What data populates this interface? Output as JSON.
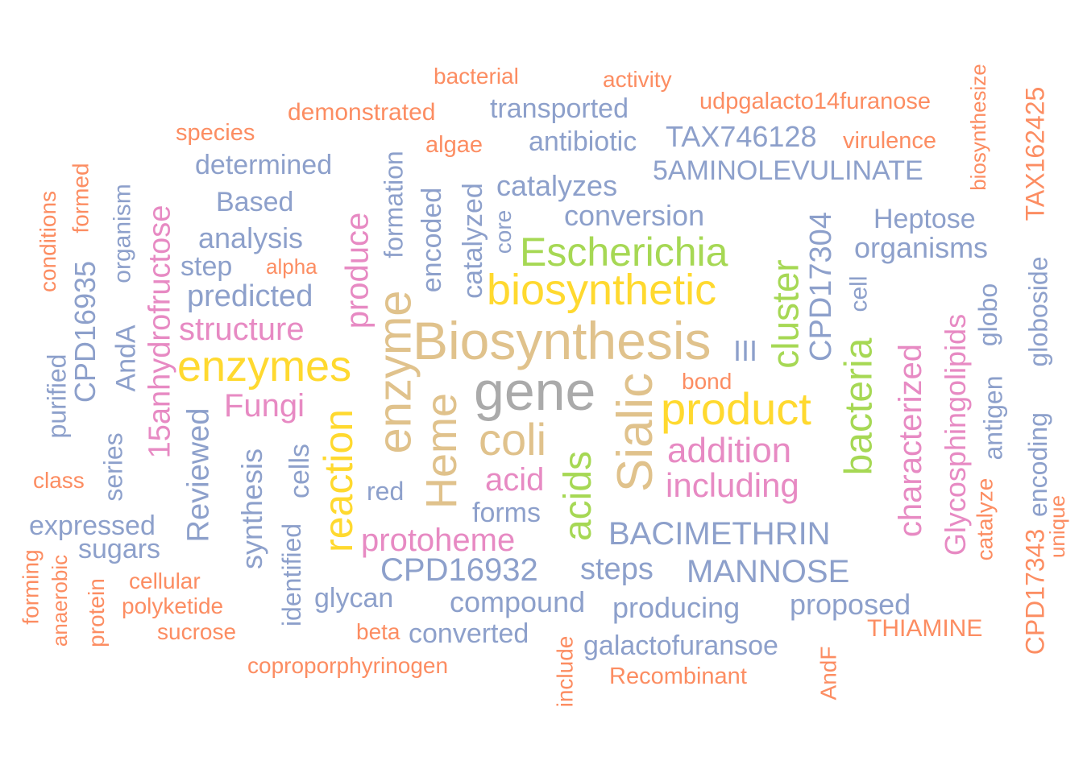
{
  "palette": {
    "gray": "#aaaaaa",
    "tan": "#e0c28c",
    "yellow": "#ffd92f",
    "green": "#a6d854",
    "pink": "#e78ac3",
    "blue": "#8da0cb",
    "orange": "#fc8d62"
  },
  "words": [
    {
      "text": "gene",
      "color": "gray"
    },
    {
      "text": "Biosynthesis",
      "color": "tan"
    },
    {
      "text": "enzyme",
      "color": "tan"
    },
    {
      "text": "Heme",
      "color": "tan"
    },
    {
      "text": "Sialic",
      "color": "tan"
    },
    {
      "text": "coli",
      "color": "tan"
    },
    {
      "text": "biosynthetic",
      "color": "yellow"
    },
    {
      "text": "enzymes",
      "color": "yellow"
    },
    {
      "text": "product",
      "color": "yellow"
    },
    {
      "text": "reaction",
      "color": "yellow"
    },
    {
      "text": "Escherichia",
      "color": "green"
    },
    {
      "text": "cluster",
      "color": "green"
    },
    {
      "text": "bacteria",
      "color": "green"
    },
    {
      "text": "acids",
      "color": "green"
    },
    {
      "text": "produce",
      "color": "pink"
    },
    {
      "text": "structure",
      "color": "pink"
    },
    {
      "text": "Fungi",
      "color": "pink"
    },
    {
      "text": "15anhydrofructose",
      "color": "pink"
    },
    {
      "text": "addition",
      "color": "pink"
    },
    {
      "text": "including",
      "color": "pink"
    },
    {
      "text": "acid",
      "color": "pink"
    },
    {
      "text": "protoheme",
      "color": "pink"
    },
    {
      "text": "characterized",
      "color": "pink"
    },
    {
      "text": "Glycosphingolipids",
      "color": "pink"
    },
    {
      "text": "transported",
      "color": "blue"
    },
    {
      "text": "antibiotic",
      "color": "blue"
    },
    {
      "text": "TAX746128",
      "color": "blue"
    },
    {
      "text": "5AMINOLEVULINATE",
      "color": "blue"
    },
    {
      "text": "catalyzes",
      "color": "blue"
    },
    {
      "text": "conversion",
      "color": "blue"
    },
    {
      "text": "Heptose",
      "color": "blue"
    },
    {
      "text": "organisms",
      "color": "blue"
    },
    {
      "text": "determined",
      "color": "blue"
    },
    {
      "text": "Based",
      "color": "blue"
    },
    {
      "text": "analysis",
      "color": "blue"
    },
    {
      "text": "step",
      "color": "blue"
    },
    {
      "text": "predicted",
      "color": "blue"
    },
    {
      "text": "formation",
      "color": "blue"
    },
    {
      "text": "encoded",
      "color": "blue"
    },
    {
      "text": "catalyzed",
      "color": "blue"
    },
    {
      "text": "core",
      "color": "blue"
    },
    {
      "text": "CPD17304",
      "color": "blue"
    },
    {
      "text": "cell",
      "color": "blue"
    },
    {
      "text": "III",
      "color": "blue"
    },
    {
      "text": "organism",
      "color": "blue"
    },
    {
      "text": "CPD16935",
      "color": "blue"
    },
    {
      "text": "AndA",
      "color": "blue"
    },
    {
      "text": "purified",
      "color": "blue"
    },
    {
      "text": "series",
      "color": "blue"
    },
    {
      "text": "Reviewed",
      "color": "blue"
    },
    {
      "text": "synthesis",
      "color": "blue"
    },
    {
      "text": "cells",
      "color": "blue"
    },
    {
      "text": "identified",
      "color": "blue"
    },
    {
      "text": "red",
      "color": "blue"
    },
    {
      "text": "forms",
      "color": "blue"
    },
    {
      "text": "expressed",
      "color": "blue"
    },
    {
      "text": "sugars",
      "color": "blue"
    },
    {
      "text": "BACIMETHRIN",
      "color": "blue"
    },
    {
      "text": "MANNOSE",
      "color": "blue"
    },
    {
      "text": "steps",
      "color": "blue"
    },
    {
      "text": "CPD16932",
      "color": "blue"
    },
    {
      "text": "glycan",
      "color": "blue"
    },
    {
      "text": "compound",
      "color": "blue"
    },
    {
      "text": "producing",
      "color": "blue"
    },
    {
      "text": "proposed",
      "color": "blue"
    },
    {
      "text": "converted",
      "color": "blue"
    },
    {
      "text": "galactofuransoe",
      "color": "blue"
    },
    {
      "text": "globo",
      "color": "blue"
    },
    {
      "text": "antigen",
      "color": "blue"
    },
    {
      "text": "encoding",
      "color": "blue"
    },
    {
      "text": "globoside",
      "color": "blue"
    },
    {
      "text": "bacterial",
      "color": "orange"
    },
    {
      "text": "activity",
      "color": "orange"
    },
    {
      "text": "demonstrated",
      "color": "orange"
    },
    {
      "text": "udpgalacto14furanose",
      "color": "orange"
    },
    {
      "text": "species",
      "color": "orange"
    },
    {
      "text": "algae",
      "color": "orange"
    },
    {
      "text": "virulence",
      "color": "orange"
    },
    {
      "text": "biosynthesize",
      "color": "orange"
    },
    {
      "text": "TAX162425",
      "color": "orange"
    },
    {
      "text": "conditions",
      "color": "orange"
    },
    {
      "text": "formed",
      "color": "orange"
    },
    {
      "text": "alpha",
      "color": "orange"
    },
    {
      "text": "bond",
      "color": "orange"
    },
    {
      "text": "class",
      "color": "orange"
    },
    {
      "text": "forming",
      "color": "orange"
    },
    {
      "text": "anaerobic",
      "color": "orange"
    },
    {
      "text": "protein",
      "color": "orange"
    },
    {
      "text": "cellular",
      "color": "orange"
    },
    {
      "text": "polyketide",
      "color": "orange"
    },
    {
      "text": "sucrose",
      "color": "orange"
    },
    {
      "text": "beta",
      "color": "orange"
    },
    {
      "text": "coproporphyrinogen",
      "color": "orange"
    },
    {
      "text": "include",
      "color": "orange"
    },
    {
      "text": "Recombinant",
      "color": "orange"
    },
    {
      "text": "AndF",
      "color": "orange"
    },
    {
      "text": "THIAMINE",
      "color": "orange"
    },
    {
      "text": "catalyze",
      "color": "orange"
    },
    {
      "text": "CPD17343",
      "color": "orange"
    },
    {
      "text": "unique",
      "color": "orange"
    }
  ]
}
